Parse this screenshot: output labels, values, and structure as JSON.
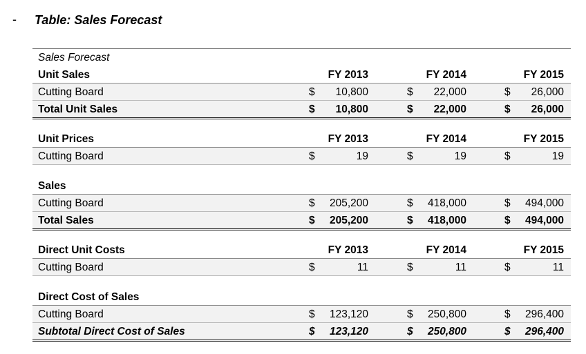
{
  "bullet": "-",
  "title": "Table: Sales Forecast",
  "table": {
    "caption": "Sales Forecast",
    "sections": [
      {
        "header": "Unit Sales",
        "columns": [
          "FY 2013",
          "FY 2014",
          "FY 2015"
        ],
        "rows": [
          {
            "label": "Cutting Board",
            "cells": [
              {
                "symbol": "$",
                "amount": "10,800"
              },
              {
                "symbol": "$",
                "amount": "22,000"
              },
              {
                "symbol": "$",
                "amount": "26,000"
              }
            ]
          },
          {
            "label": "Total Unit Sales",
            "cells": [
              {
                "symbol": "$",
                "amount": "10,800"
              },
              {
                "symbol": "$",
                "amount": "22,000"
              },
              {
                "symbol": "$",
                "amount": "26,000"
              }
            ]
          }
        ]
      },
      {
        "header": "Unit Prices",
        "columns": [
          "FY 2013",
          "FY 2014",
          "FY 2015"
        ],
        "rows": [
          {
            "label": "Cutting Board",
            "cells": [
              {
                "symbol": "$",
                "amount": "19"
              },
              {
                "symbol": "$",
                "amount": "19"
              },
              {
                "symbol": "$",
                "amount": "19"
              }
            ]
          }
        ]
      },
      {
        "header": "Sales",
        "rows": [
          {
            "label": "Cutting Board",
            "cells": [
              {
                "symbol": "$",
                "amount": "205,200"
              },
              {
                "symbol": "$",
                "amount": "418,000"
              },
              {
                "symbol": "$",
                "amount": "494,000"
              }
            ]
          },
          {
            "label": "Total Sales",
            "cells": [
              {
                "symbol": "$",
                "amount": "205,200"
              },
              {
                "symbol": "$",
                "amount": "418,000"
              },
              {
                "symbol": "$",
                "amount": "494,000"
              }
            ]
          }
        ]
      },
      {
        "header": "Direct Unit Costs",
        "columns": [
          "FY 2013",
          "FY 2014",
          "FY 2015"
        ],
        "rows": [
          {
            "label": "Cutting Board",
            "cells": [
              {
                "symbol": "$",
                "amount": "11"
              },
              {
                "symbol": "$",
                "amount": "11"
              },
              {
                "symbol": "$",
                "amount": "11"
              }
            ]
          }
        ]
      },
      {
        "header": "Direct Cost of Sales",
        "rows": [
          {
            "label": "Cutting Board",
            "cells": [
              {
                "symbol": "$",
                "amount": "123,120"
              },
              {
                "symbol": "$",
                "amount": "250,800"
              },
              {
                "symbol": "$",
                "amount": "296,400"
              }
            ]
          },
          {
            "label": "Subtotal Direct Cost of Sales",
            "cells": [
              {
                "symbol": "$",
                "amount": "123,120"
              },
              {
                "symbol": "$",
                "amount": "250,800"
              },
              {
                "symbol": "$",
                "amount": "296,400"
              }
            ]
          }
        ]
      }
    ]
  }
}
